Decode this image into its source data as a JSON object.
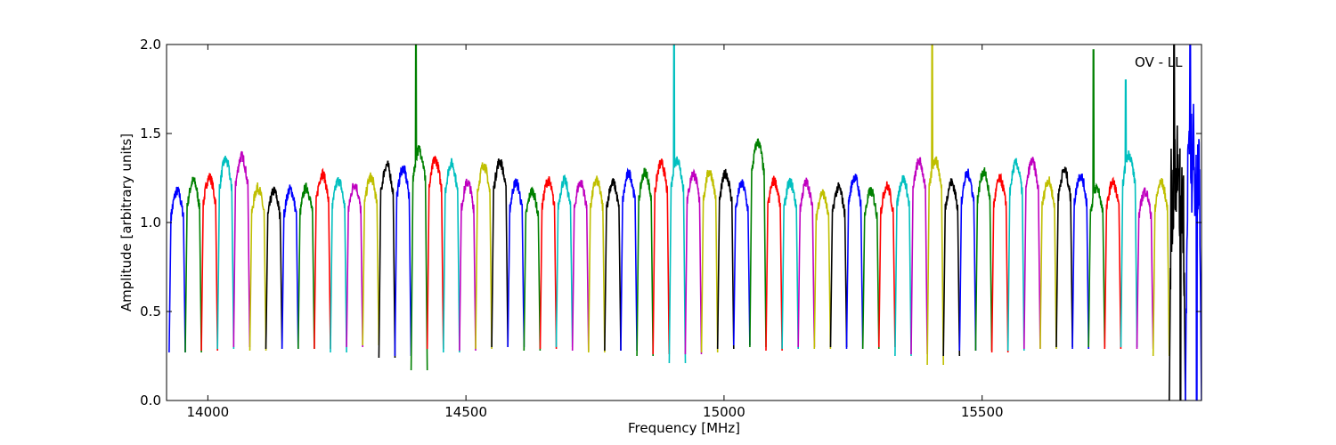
{
  "chart_data": {
    "type": "line",
    "title": "",
    "xlabel": "Frequency [MHz]",
    "ylabel": "Amplitude [arbitrary units]",
    "xlim": [
      13920,
      15925
    ],
    "ylim": [
      0,
      2.0
    ],
    "xticks": [
      14000,
      14500,
      15000,
      15500
    ],
    "yticks": [
      0.0,
      0.5,
      1.0,
      1.5,
      2.0
    ],
    "xtick_labels": [
      "14000",
      "14500",
      "15000",
      "15500"
    ],
    "ytick_labels": [
      "0.0",
      "0.5",
      "1.0",
      "1.5",
      "2.0"
    ],
    "annotation": "OV - LL",
    "grid": false,
    "colors": [
      "#0000ff",
      "#008000",
      "#ff0000",
      "#00bfbf",
      "#bf00bf",
      "#bfbf00",
      "#000000"
    ],
    "channel_start_mhz": 13925,
    "channel_width_mhz": 31.25,
    "channels": [
      {
        "center": 13940.6,
        "color": "#0000ff",
        "peak": 1.2,
        "low": 0.27
      },
      {
        "center": 13971.9,
        "color": "#008000",
        "peak": 1.26,
        "low": 0.27
      },
      {
        "center": 14003.1,
        "color": "#ff0000",
        "peak": 1.28,
        "low": 0.28
      },
      {
        "center": 14034.4,
        "color": "#00bfbf",
        "peak": 1.38,
        "low": 0.29
      },
      {
        "center": 14065.6,
        "color": "#bf00bf",
        "peak": 1.4,
        "low": 0.3
      },
      {
        "center": 14096.9,
        "color": "#bfbf00",
        "peak": 1.22,
        "low": 0.28
      },
      {
        "center": 14128.1,
        "color": "#000000",
        "peak": 1.2,
        "low": 0.29
      },
      {
        "center": 14159.4,
        "color": "#0000ff",
        "peak": 1.21,
        "low": 0.29
      },
      {
        "center": 14190.6,
        "color": "#008000",
        "peak": 1.22,
        "low": 0.29
      },
      {
        "center": 14221.9,
        "color": "#ff0000",
        "peak": 1.3,
        "low": 0.29
      },
      {
        "center": 14253.1,
        "color": "#00bfbf",
        "peak": 1.26,
        "low": 0.27
      },
      {
        "center": 14284.4,
        "color": "#bf00bf",
        "peak": 1.24,
        "low": 0.3
      },
      {
        "center": 14315.6,
        "color": "#bfbf00",
        "peak": 1.28,
        "low": 0.31
      },
      {
        "center": 14346.9,
        "color": "#000000",
        "peak": 1.35,
        "low": 0.24
      },
      {
        "center": 14378.1,
        "color": "#0000ff",
        "peak": 1.33,
        "low": 0.25
      },
      {
        "center": 14409.4,
        "color": "#008000",
        "peak": 1.44,
        "low": 0.17,
        "spike": 2.0
      },
      {
        "center": 14440.6,
        "color": "#ff0000",
        "peak": 1.38,
        "low": 0.29
      },
      {
        "center": 14471.9,
        "color": "#00bfbf",
        "peak": 1.36,
        "low": 0.27
      },
      {
        "center": 14503.1,
        "color": "#bf00bf",
        "peak": 1.25,
        "low": 0.28
      },
      {
        "center": 14534.4,
        "color": "#bfbf00",
        "peak": 1.35,
        "low": 0.29
      },
      {
        "center": 14565.6,
        "color": "#000000",
        "peak": 1.37,
        "low": 0.3
      },
      {
        "center": 14596.9,
        "color": "#0000ff",
        "peak": 1.25,
        "low": 0.3
      },
      {
        "center": 14628.1,
        "color": "#008000",
        "peak": 1.2,
        "low": 0.28
      },
      {
        "center": 14659.4,
        "color": "#ff0000",
        "peak": 1.26,
        "low": 0.29
      },
      {
        "center": 14690.6,
        "color": "#00bfbf",
        "peak": 1.26,
        "low": 0.3
      },
      {
        "center": 14721.9,
        "color": "#bf00bf",
        "peak": 1.25,
        "low": 0.28
      },
      {
        "center": 14753.1,
        "color": "#bfbf00",
        "peak": 1.26,
        "low": 0.27
      },
      {
        "center": 14784.4,
        "color": "#000000",
        "peak": 1.25,
        "low": 0.28
      },
      {
        "center": 14815.6,
        "color": "#0000ff",
        "peak": 1.3,
        "low": 0.28
      },
      {
        "center": 14846.9,
        "color": "#008000",
        "peak": 1.31,
        "low": 0.25
      },
      {
        "center": 14878.1,
        "color": "#ff0000",
        "peak": 1.36,
        "low": 0.26
      },
      {
        "center": 14909.4,
        "color": "#00bfbf",
        "peak": 1.38,
        "low": 0.21,
        "spike": 2.0
      },
      {
        "center": 14940.6,
        "color": "#bf00bf",
        "peak": 1.3,
        "low": 0.26
      },
      {
        "center": 14971.9,
        "color": "#bfbf00",
        "peak": 1.31,
        "low": 0.27
      },
      {
        "center": 15003.1,
        "color": "#000000",
        "peak": 1.3,
        "low": 0.29
      },
      {
        "center": 15034.4,
        "color": "#0000ff",
        "peak": 1.24,
        "low": 0.31
      },
      {
        "center": 15065.6,
        "color": "#008000",
        "peak": 1.48,
        "low": 0.3
      },
      {
        "center": 15096.9,
        "color": "#ff0000",
        "peak": 1.26,
        "low": 0.28
      },
      {
        "center": 15128.1,
        "color": "#00bfbf",
        "peak": 1.25,
        "low": 0.29
      },
      {
        "center": 15159.4,
        "color": "#bf00bf",
        "peak": 1.25,
        "low": 0.3
      },
      {
        "center": 15190.6,
        "color": "#bfbf00",
        "peak": 1.19,
        "low": 0.29
      },
      {
        "center": 15221.9,
        "color": "#000000",
        "peak": 1.22,
        "low": 0.3
      },
      {
        "center": 15253.1,
        "color": "#0000ff",
        "peak": 1.28,
        "low": 0.29
      },
      {
        "center": 15284.4,
        "color": "#008000",
        "peak": 1.2,
        "low": 0.29
      },
      {
        "center": 15315.6,
        "color": "#ff0000",
        "peak": 1.23,
        "low": 0.3
      },
      {
        "center": 15346.9,
        "color": "#00bfbf",
        "peak": 1.27,
        "low": 0.25
      },
      {
        "center": 15378.1,
        "color": "#bf00bf",
        "peak": 1.37,
        "low": 0.26
      },
      {
        "center": 15409.4,
        "color": "#bfbf00",
        "peak": 1.38,
        "low": 0.2,
        "spike": 2.0
      },
      {
        "center": 15440.6,
        "color": "#000000",
        "peak": 1.25,
        "low": 0.25
      },
      {
        "center": 15471.9,
        "color": "#0000ff",
        "peak": 1.3,
        "low": 0.28
      },
      {
        "center": 15503.1,
        "color": "#008000",
        "peak": 1.31,
        "low": 0.28
      },
      {
        "center": 15534.4,
        "color": "#ff0000",
        "peak": 1.27,
        "low": 0.27
      },
      {
        "center": 15565.6,
        "color": "#00bfbf",
        "peak": 1.36,
        "low": 0.28
      },
      {
        "center": 15596.9,
        "color": "#bf00bf",
        "peak": 1.37,
        "low": 0.29
      },
      {
        "center": 15628.1,
        "color": "#bfbf00",
        "peak": 1.26,
        "low": 0.29
      },
      {
        "center": 15659.4,
        "color": "#000000",
        "peak": 1.32,
        "low": 0.3
      },
      {
        "center": 15690.6,
        "color": "#0000ff",
        "peak": 1.29,
        "low": 0.29
      },
      {
        "center": 15721.9,
        "color": "#008000",
        "peak": 1.22,
        "low": 0.3,
        "spike": 1.97
      },
      {
        "center": 15753.1,
        "color": "#ff0000",
        "peak": 1.25,
        "low": 0.29
      },
      {
        "center": 15784.4,
        "color": "#00bfbf",
        "peak": 1.41,
        "low": 0.3,
        "spike": 1.8
      },
      {
        "center": 15815.6,
        "color": "#bf00bf",
        "peak": 1.2,
        "low": 0.29
      },
      {
        "center": 15846.9,
        "color": "#bfbf00",
        "peak": 1.25,
        "low": 0.25
      },
      {
        "center": 15878.1,
        "color": "#000000",
        "peak": 1.28,
        "low": 0.0,
        "spike": 2.0,
        "noisy": true
      },
      {
        "center": 15909.4,
        "color": "#0000ff",
        "peak": 1.38,
        "low": 0.0,
        "spike": 2.0,
        "noisy": true
      }
    ]
  }
}
